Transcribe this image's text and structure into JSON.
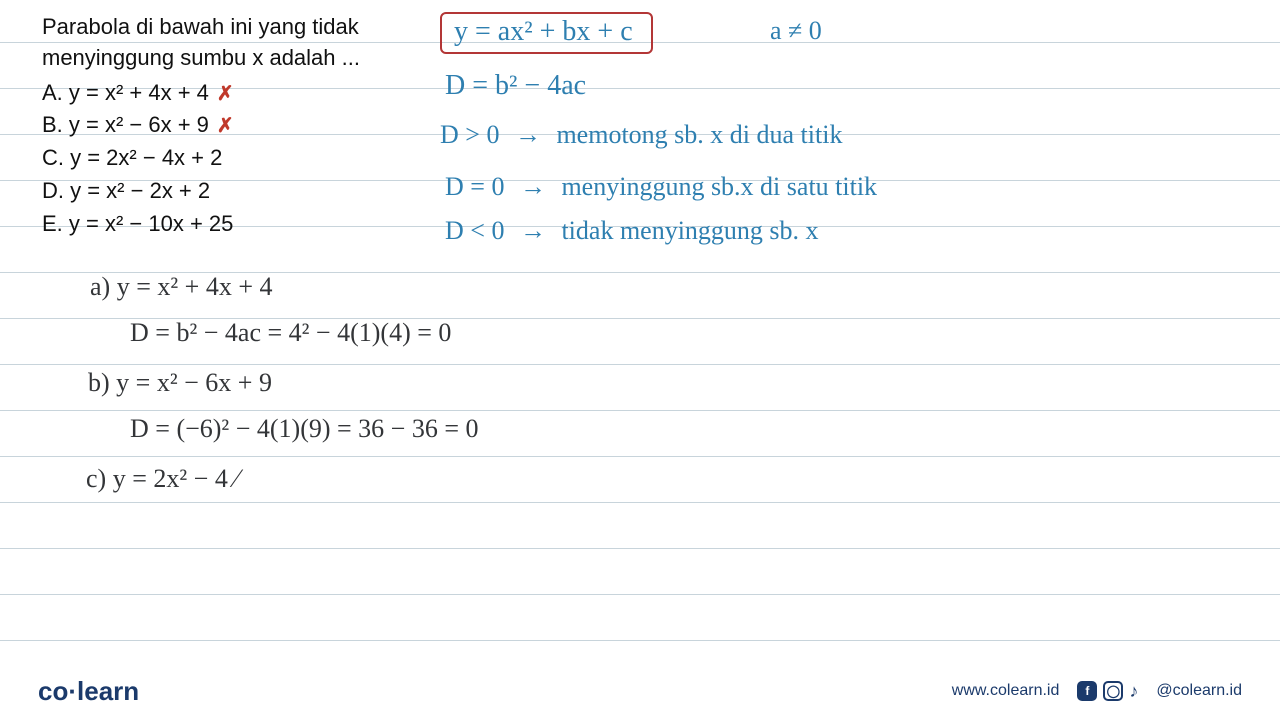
{
  "colors": {
    "ruled_line": "#c8d4db",
    "text": "#111111",
    "handwriting": "#2e7fb0",
    "handwriting_dark": "#333538",
    "box_border": "#b33636",
    "brand": "#1b3a6b",
    "red_mark": "#c0392b"
  },
  "ruled_lines_y": [
    42,
    88,
    134,
    180,
    226,
    272,
    318,
    364,
    410,
    456,
    502,
    548,
    594,
    640
  ],
  "question": {
    "prompt_line1": "Parabola di bawah ini yang tidak",
    "prompt_line2": "menyinggung sumbu x adalah ...",
    "options": [
      {
        "label": "A. y = x² + 4x + 4",
        "marked_wrong": true
      },
      {
        "label": "B. y = x² − 6x + 9",
        "marked_wrong": true
      },
      {
        "label": "C. y = 2x² − 4x + 2",
        "marked_wrong": false
      },
      {
        "label": "D. y = x² − 2x + 2",
        "marked_wrong": false
      },
      {
        "label": "E. y = x² − 10x + 25",
        "marked_wrong": false
      }
    ]
  },
  "boxed_formula": "y = ax² + bx + c",
  "condition_a": "a ≠ 0",
  "discriminant": "D = b² − 4ac",
  "d_pos_left": "D > 0",
  "d_pos_right": "memotong sb. x di dua titik",
  "d_zero_left": "D = 0",
  "d_zero_right": "menyinggung sb.x di satu titik",
  "d_neg_left": "D < 0",
  "d_neg_right": "tidak menyinggung sb. x",
  "work": {
    "a1": "a)   y = x² + 4x + 4",
    "a2": "D = b² − 4ac  =  4² − 4(1)(4)  = 0",
    "b1": "b)   y = x² − 6x + 9",
    "b2": "D = (−6)² − 4(1)(9)  =  36 − 36  =  0",
    "c1": "c)   y = 2x² − 4 ⁄"
  },
  "footer": {
    "logo_co": "co",
    "logo_sep": "·",
    "logo_learn": "learn",
    "url": "www.colearn.id",
    "handle": "@colearn.id"
  }
}
